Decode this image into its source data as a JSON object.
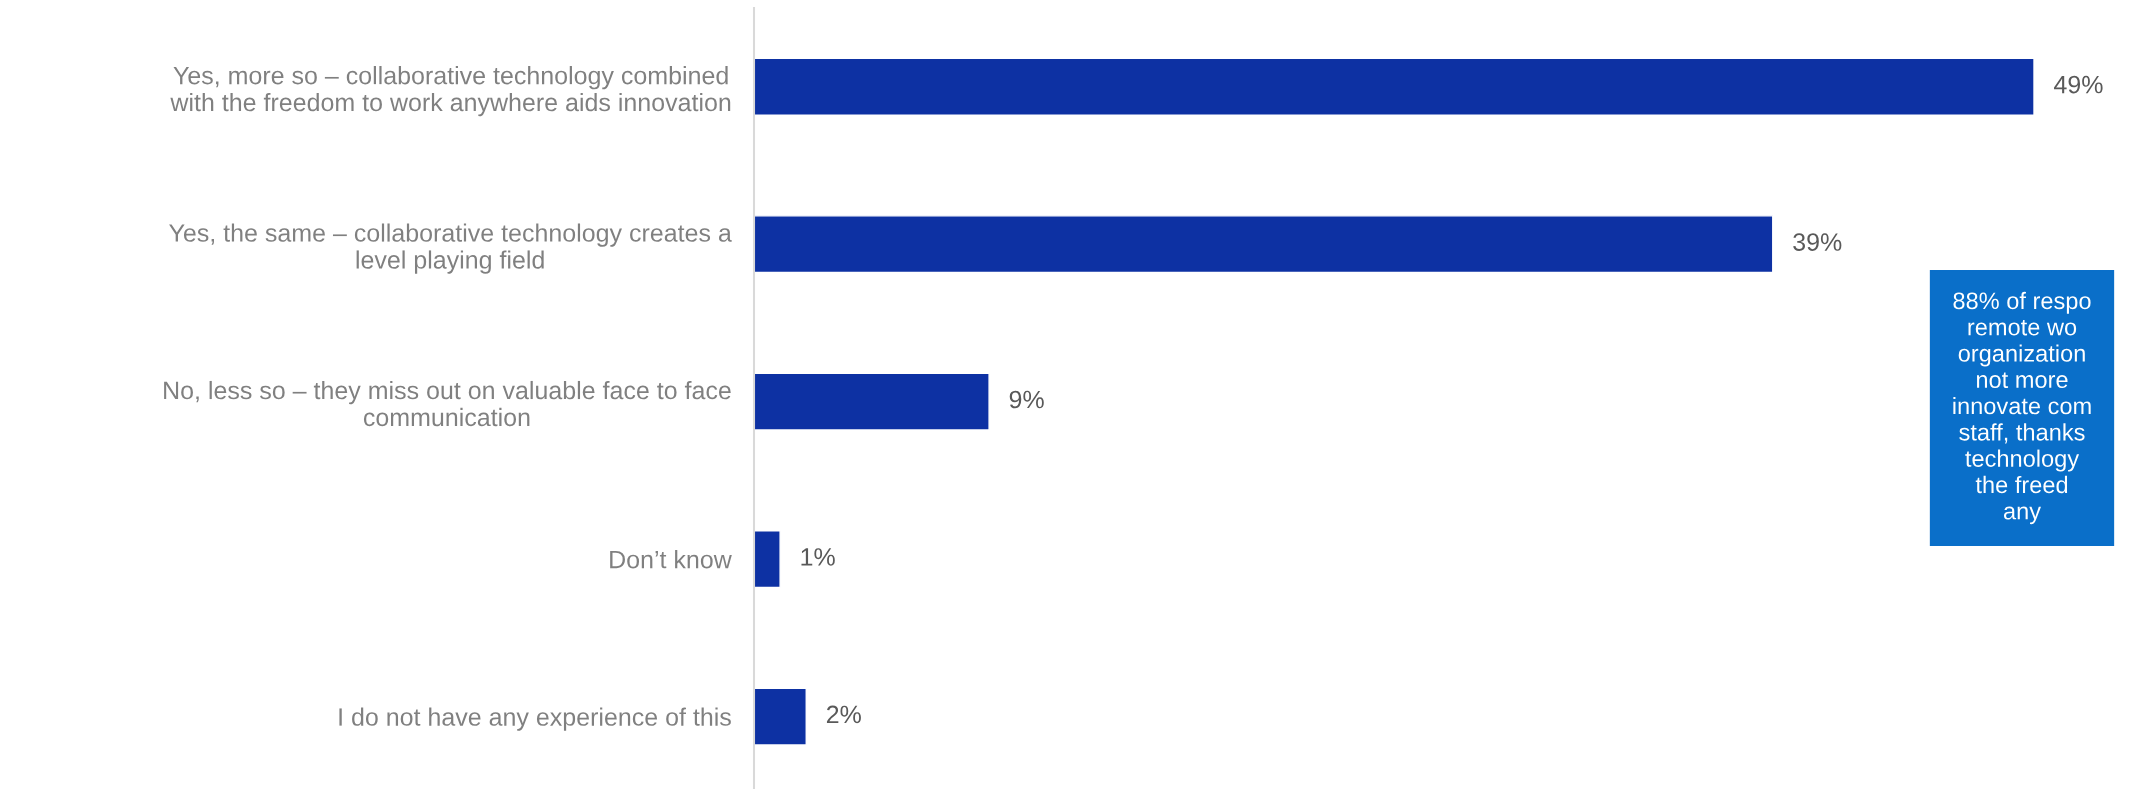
{
  "chart_data": {
    "type": "bar",
    "orientation": "horizontal",
    "categories": [
      "Yes, more so – collaborative technology combined\nwith the freedom to work anywhere aids innovation",
      "Yes, the same – collaborative technology creates a\nlevel playing field",
      "No, less so – they miss out on valuable face to face\ncommunication",
      "Don’t know",
      "I do not have any experience of this"
    ],
    "values": [
      49,
      39,
      9,
      1,
      2
    ],
    "value_labels": [
      "49%",
      "39%",
      "9%",
      "1%",
      "2%"
    ],
    "color": "#0d31a3",
    "annotations": [
      "88% of respo\nremote wo\norganization\nnot more\ninnovate com\nstaff, thanks\ntechnology\nthe freed\nany"
    ],
    "grid": false,
    "legend": false
  }
}
